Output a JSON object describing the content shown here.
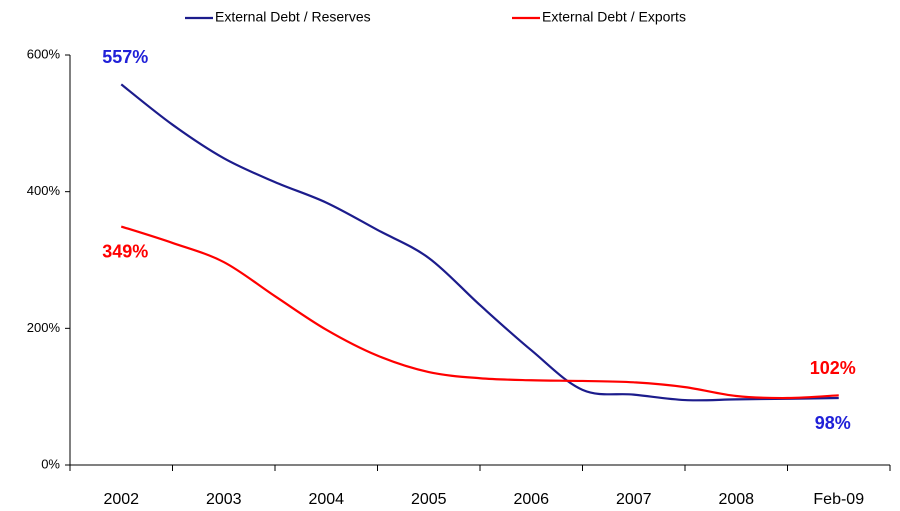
{
  "chart_data": {
    "type": "line",
    "categories": [
      "2002",
      null,
      "2003",
      null,
      "2004",
      null,
      "2005",
      null,
      "2006",
      null,
      "2007",
      null,
      "2008",
      null,
      "Feb-09"
    ],
    "series": [
      {
        "name": "External Debt / Reserves",
        "color": "#1c1c8c",
        "values": [
          557,
          498,
          449,
          414,
          384,
          344,
          303,
          234,
          168,
          110,
          103,
          95,
          96,
          97,
          98
        ],
        "value_labels": [
          "557%",
          null,
          null,
          null,
          null,
          null,
          null,
          null,
          null,
          null,
          null,
          null,
          null,
          null,
          "98%"
        ]
      },
      {
        "name": "External Debt / Exports",
        "color": "#ff0000",
        "values": [
          349,
          325,
          297,
          247,
          198,
          160,
          136,
          127,
          124,
          123,
          121,
          114,
          101,
          98,
          102
        ],
        "value_labels": [
          "349%",
          null,
          null,
          null,
          null,
          null,
          null,
          null,
          null,
          null,
          null,
          null,
          null,
          null,
          "102%"
        ]
      }
    ],
    "ylim": [
      0,
      600
    ],
    "yticks": [
      {
        "value": 0,
        "label": "0%"
      },
      {
        "value": 200,
        "label": "200%"
      },
      {
        "value": 400,
        "label": "400%"
      },
      {
        "value": 600,
        "label": "600%"
      }
    ],
    "grid": false,
    "legend": "top"
  }
}
